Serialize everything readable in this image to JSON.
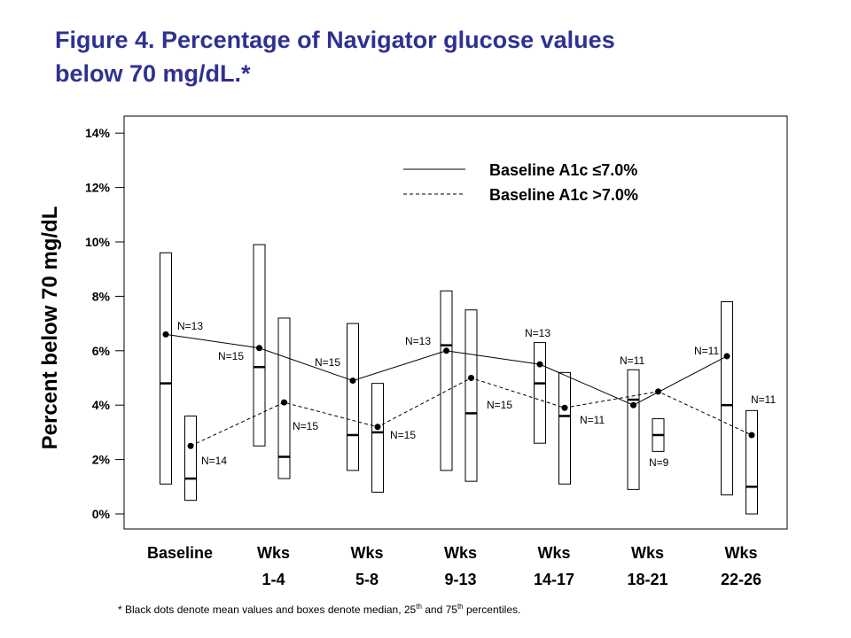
{
  "title_line1": "Figure 4. Percentage of Navigator glucose values",
  "title_line2": "below 70 mg/dL.*",
  "footnote": {
    "prefix": "* Black dots denote mean values and boxes denote median, 25",
    "sup1": "th",
    "middle": " and 75",
    "sup2": "th",
    "suffix": " percentiles."
  },
  "chart_data": {
    "type": "box",
    "ylabel": "Percent below 70 mg/dL",
    "ylim": [
      0,
      14
    ],
    "yticks": [
      "0%",
      "2%",
      "4%",
      "6%",
      "8%",
      "10%",
      "12%",
      "14%"
    ],
    "categories": [
      [
        "Baseline"
      ],
      [
        "Wks",
        "1-4"
      ],
      [
        "Wks",
        "5-8"
      ],
      [
        "Wks",
        "9-13"
      ],
      [
        "Wks",
        "14-17"
      ],
      [
        "Wks",
        "18-21"
      ],
      [
        "Wks",
        "22-26"
      ]
    ],
    "legend": [
      {
        "label": "Baseline A1c ≤7.0%",
        "style": "solid"
      },
      {
        "label": "Baseline A1c >7.0%",
        "style": "dashed"
      }
    ],
    "series": [
      {
        "name": "Baseline A1c ≤7.0%",
        "style": "solid",
        "boxes": [
          {
            "q1": 1.1,
            "median": 4.8,
            "q3": 9.6,
            "mean": 6.6,
            "n": "N=13"
          },
          {
            "q1": 2.5,
            "median": 5.4,
            "q3": 9.9,
            "mean": 6.1,
            "n": "N=15"
          },
          {
            "q1": 1.6,
            "median": 2.9,
            "q3": 7.0,
            "mean": 4.9,
            "n": "N=15"
          },
          {
            "q1": 1.6,
            "median": 6.2,
            "q3": 8.2,
            "mean": 6.0,
            "n": "N=13"
          },
          {
            "q1": 2.6,
            "median": 4.8,
            "q3": 6.3,
            "mean": 5.5,
            "n": "N=13"
          },
          {
            "q1": 0.9,
            "median": 4.2,
            "q3": 5.3,
            "mean": 4.0,
            "n": "N=11"
          },
          {
            "q1": 0.7,
            "median": 4.0,
            "q3": 7.8,
            "mean": 5.8,
            "n": "N=11"
          }
        ]
      },
      {
        "name": "Baseline A1c >7.0%",
        "style": "dashed",
        "boxes": [
          {
            "q1": 0.5,
            "median": 1.3,
            "q3": 3.6,
            "mean": 2.5,
            "n": "N=14"
          },
          {
            "q1": 1.3,
            "median": 2.1,
            "q3": 7.2,
            "mean": 4.1,
            "n": "N=15"
          },
          {
            "q1": 0.8,
            "median": 3.0,
            "q3": 4.8,
            "mean": 3.2,
            "n": "N=15"
          },
          {
            "q1": 1.2,
            "median": 3.7,
            "q3": 7.5,
            "mean": 5.0,
            "n": "N=15"
          },
          {
            "q1": 1.1,
            "median": 3.6,
            "q3": 5.2,
            "mean": 3.9,
            "n": "N=11"
          },
          {
            "q1": 2.3,
            "median": 2.9,
            "q3": 3.5,
            "mean": 4.5,
            "n": "N=9"
          },
          {
            "q1": 0.0,
            "median": 1.0,
            "q3": 3.8,
            "mean": 2.9,
            "n": "N=11"
          }
        ]
      }
    ]
  }
}
